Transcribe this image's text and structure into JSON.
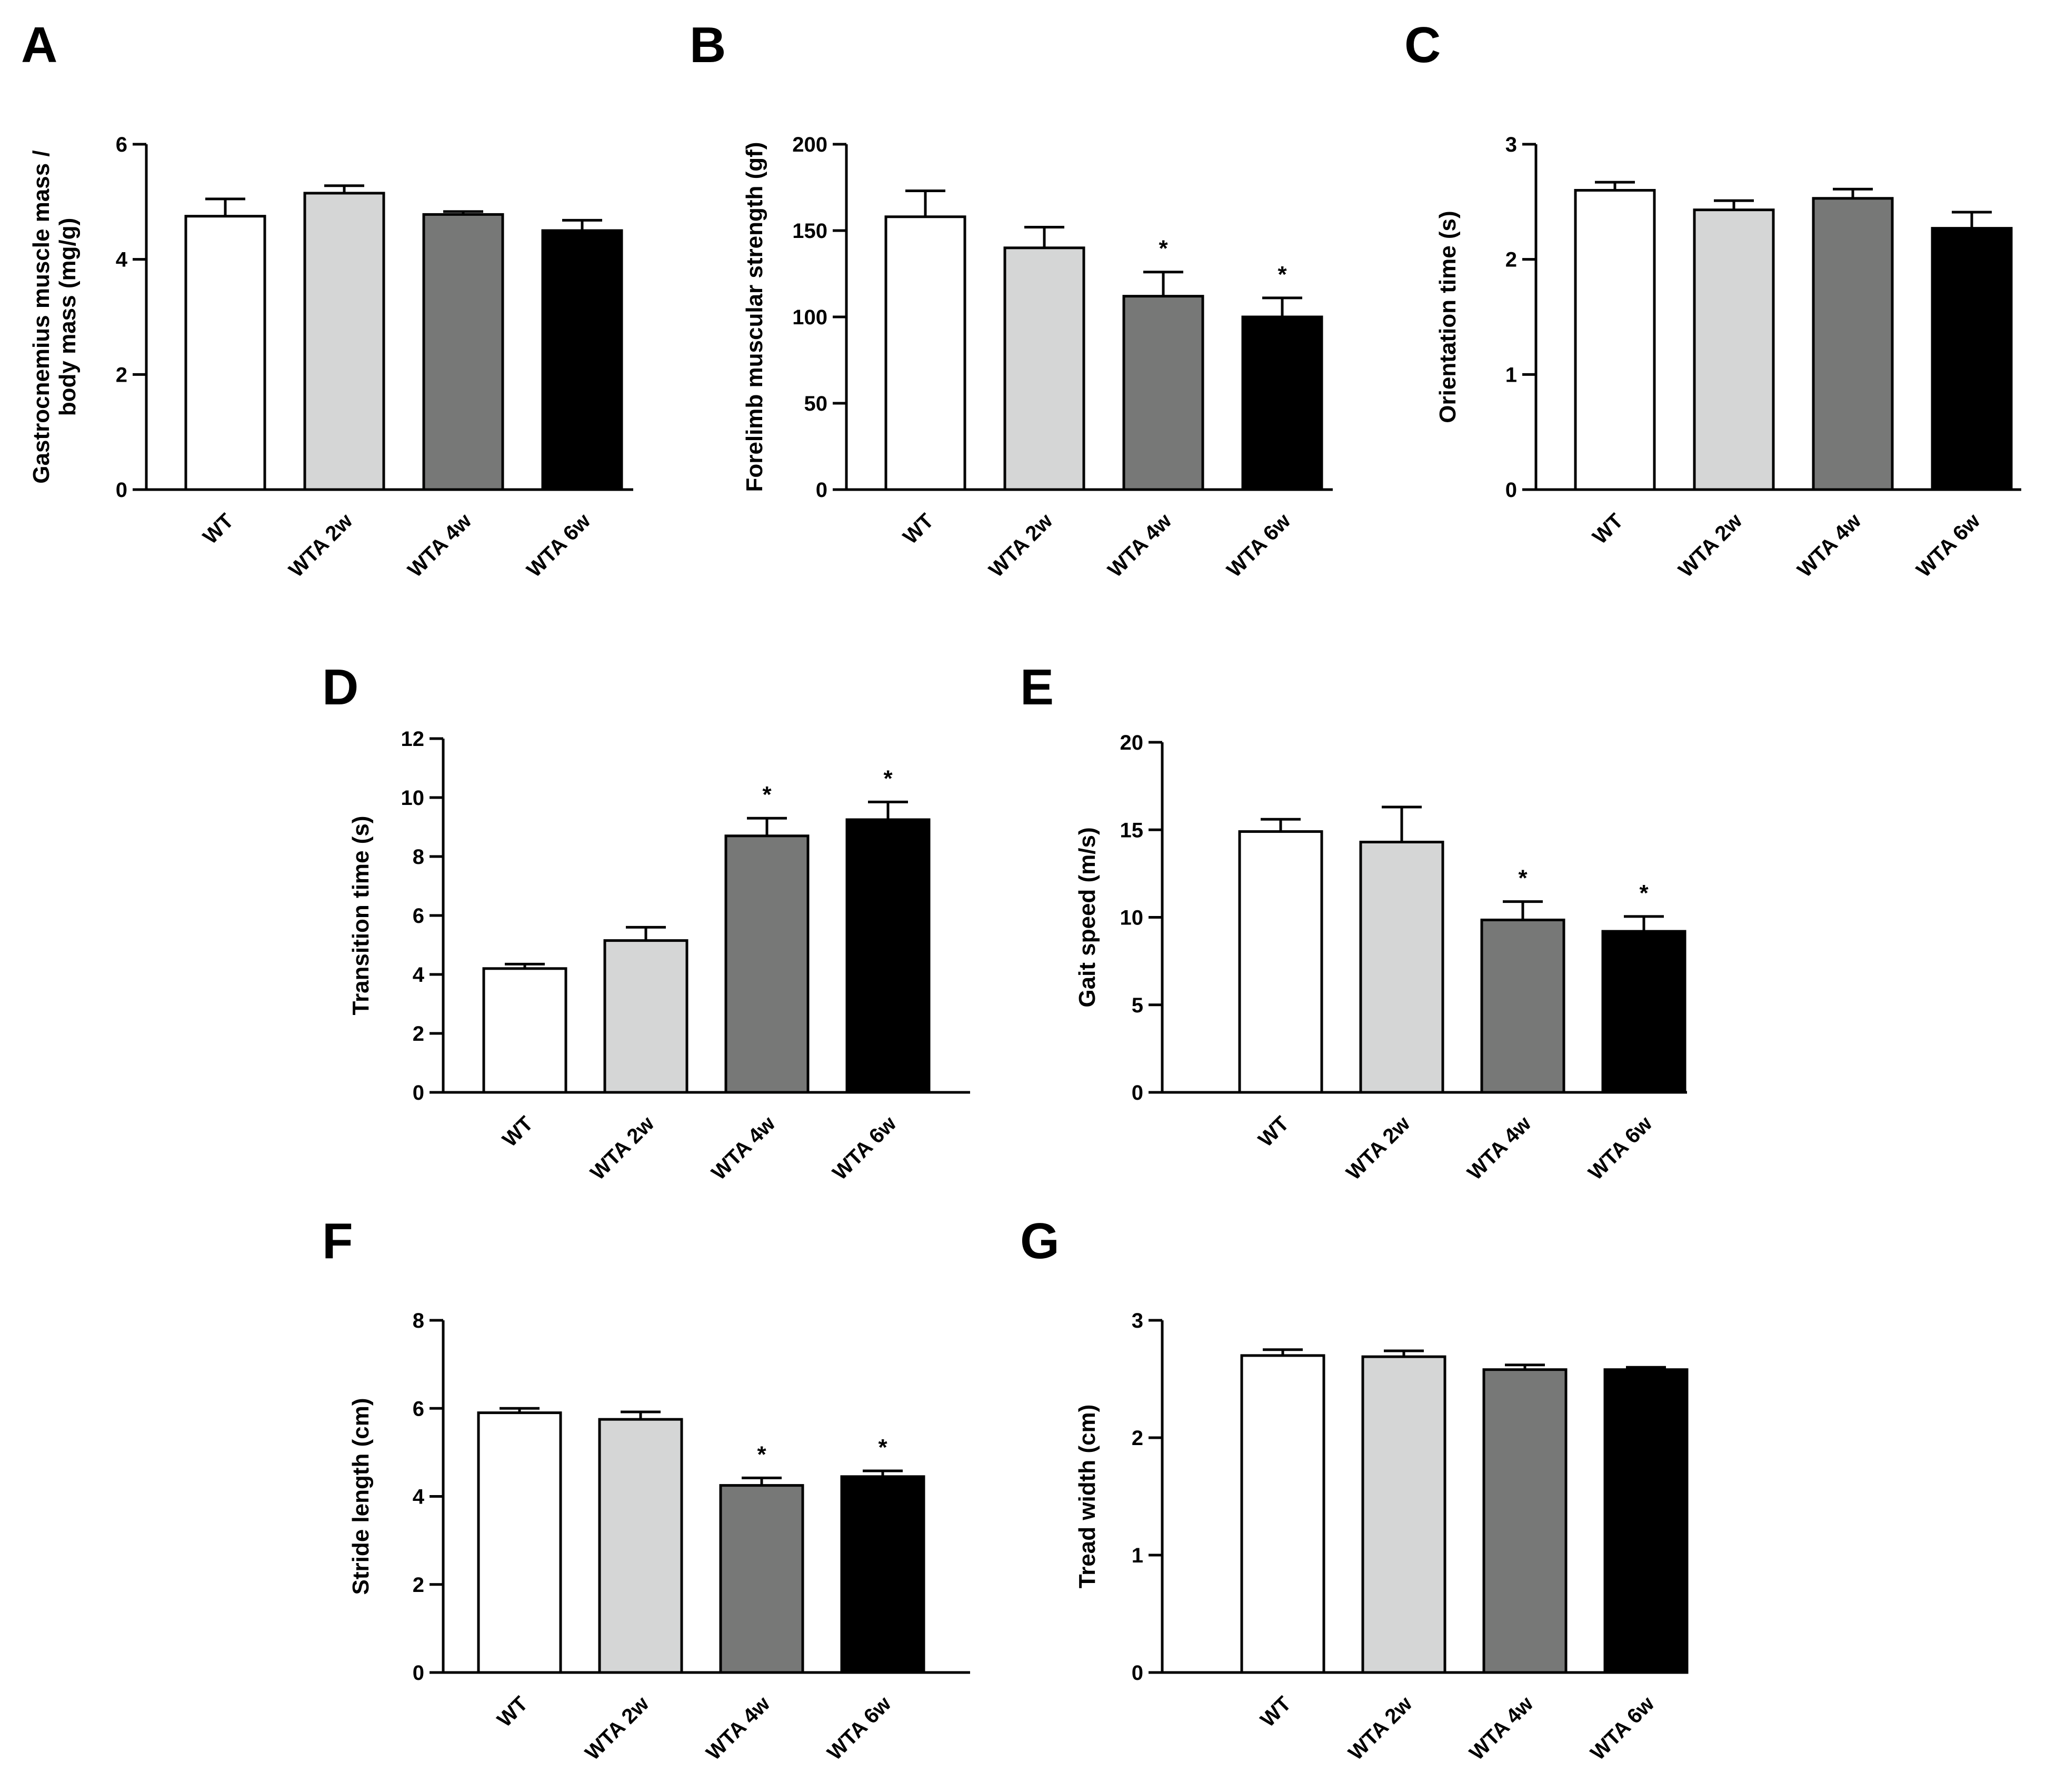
{
  "colors": {
    "WT": "#ffffff",
    "WTA 2w": "#d5d6d6",
    "WTA 4w": "#777877",
    "WTA 6w": "#000000",
    "stroke": "#000000"
  },
  "chart_data": [
    {
      "panel": "A",
      "type": "bar",
      "categories": [
        "WT",
        "WTA 2w",
        "WTA 4w",
        "WTA 6w"
      ],
      "values": [
        4.75,
        5.15,
        4.78,
        4.5
      ],
      "errors": [
        0.3,
        0.13,
        0.05,
        0.18
      ],
      "significant": [
        false,
        false,
        false,
        false
      ],
      "significance_marker": "*",
      "ylabel": [
        "Gastrocnemius muscle mass /",
        "body mass (mg/g)"
      ],
      "ylim": [
        0,
        6
      ],
      "yticks": [
        0,
        2,
        4,
        6
      ]
    },
    {
      "panel": "B",
      "type": "bar",
      "categories": [
        "WT",
        "WTA 2w",
        "WTA 4w",
        "WTA 6w"
      ],
      "values": [
        158,
        140,
        112,
        100
      ],
      "errors": [
        15,
        12,
        14,
        11
      ],
      "significant": [
        false,
        false,
        true,
        true
      ],
      "significance_marker": "*",
      "ylabel": [
        "Forelimb muscular strength (gf)"
      ],
      "ylim": [
        0,
        200
      ],
      "yticks": [
        0,
        50,
        100,
        150,
        200
      ]
    },
    {
      "panel": "C",
      "type": "bar",
      "categories": [
        "WT",
        "WTA 2w",
        "WTA 4w",
        "WTA 6w"
      ],
      "values": [
        2.6,
        2.43,
        2.53,
        2.27
      ],
      "errors": [
        0.07,
        0.08,
        0.08,
        0.14
      ],
      "significant": [
        false,
        false,
        false,
        false
      ],
      "significance_marker": "*",
      "ylabel": [
        "Orientation time (s)"
      ],
      "ylim": [
        0,
        3
      ],
      "yticks": [
        0,
        1,
        2,
        3
      ]
    },
    {
      "panel": "D",
      "type": "bar",
      "categories": [
        "WT",
        "WTA 2w",
        "WTA 4w",
        "WTA 6w"
      ],
      "values": [
        4.2,
        5.15,
        8.7,
        9.25
      ],
      "errors": [
        0.15,
        0.45,
        0.6,
        0.6
      ],
      "significant": [
        false,
        false,
        true,
        true
      ],
      "significance_marker": "*",
      "ylabel": [
        "Transition time (s)"
      ],
      "ylim": [
        0,
        12
      ],
      "yticks": [
        0,
        2,
        4,
        6,
        8,
        10,
        12
      ]
    },
    {
      "panel": "E",
      "type": "bar",
      "categories": [
        "WT",
        "WTA 2w",
        "WTA 4w",
        "WTA 6w"
      ],
      "values": [
        14.9,
        14.3,
        9.85,
        9.2
      ],
      "errors": [
        0.7,
        2.0,
        1.05,
        0.85
      ],
      "significant": [
        false,
        false,
        true,
        true
      ],
      "significance_marker": "*",
      "ylabel": [
        "Gait speed (m/s)"
      ],
      "ylim": [
        0,
        20
      ],
      "yticks": [
        0,
        5,
        10,
        15,
        20
      ]
    },
    {
      "panel": "F",
      "type": "bar",
      "categories": [
        "WT",
        "WTA 2w",
        "WTA 4w",
        "WTA 6w"
      ],
      "values": [
        5.9,
        5.75,
        4.25,
        4.45
      ],
      "errors": [
        0.1,
        0.17,
        0.17,
        0.13
      ],
      "significant": [
        false,
        false,
        true,
        true
      ],
      "significance_marker": "*",
      "ylabel": [
        "Stride length (cm)"
      ],
      "ylim": [
        0,
        8
      ],
      "yticks": [
        0,
        2,
        4,
        6,
        8
      ]
    },
    {
      "panel": "G",
      "type": "bar",
      "categories": [
        "WT",
        "WTA 2w",
        "WTA 4w",
        "WTA 6w"
      ],
      "values": [
        2.7,
        2.69,
        2.58,
        2.58
      ],
      "errors": [
        0.05,
        0.05,
        0.04,
        0.02
      ],
      "significant": [
        false,
        false,
        false,
        false
      ],
      "significance_marker": "*",
      "ylabel": [
        "Tread width (cm)"
      ],
      "ylim": [
        0,
        3
      ],
      "yticks": [
        0,
        1,
        2,
        3
      ]
    }
  ]
}
